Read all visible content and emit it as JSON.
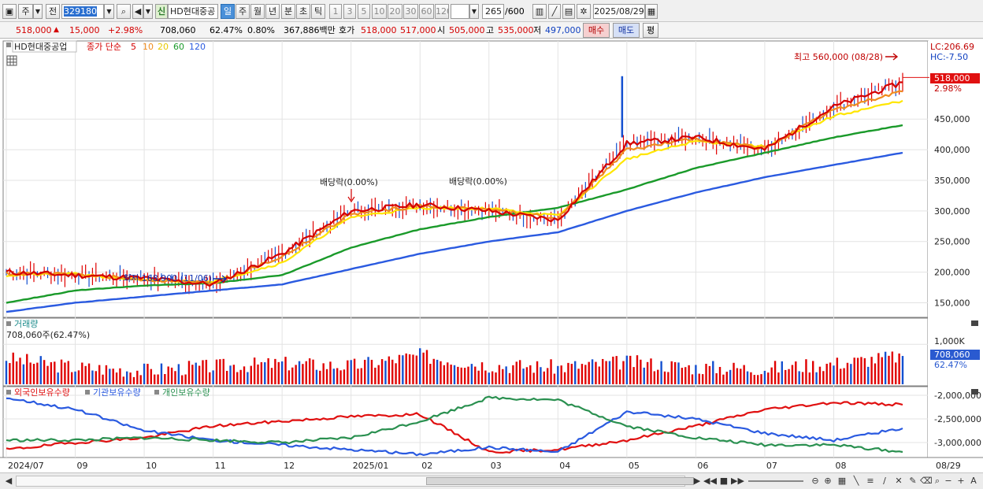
{
  "toolbar": {
    "type_label": "주",
    "prev_label": "전",
    "code": "329180",
    "name_badge": "신",
    "name": "HD현대중공",
    "period_buttons": [
      "일",
      "주",
      "월",
      "년",
      "분",
      "초",
      "틱"
    ],
    "period_selected": "일",
    "n_buttons": [
      "1",
      "3",
      "5",
      "10",
      "20",
      "30",
      "60",
      "120"
    ],
    "count_value": "265",
    "count_total": "/600",
    "date": "2025/08/29"
  },
  "quote": {
    "price": "518,000",
    "change_arrow": "▲",
    "change": "15,000",
    "change_pct": "+2.98%",
    "volume": "708,060",
    "volume_pct": "62.47%",
    "turnover_pct": "0.80%",
    "amount": "367,886백만",
    "ask_label": "호가",
    "ask": "518,000",
    "bid": "517,000",
    "open_label": "시",
    "open": "505,000",
    "high_label": "고",
    "high": "535,000",
    "low_label": "저",
    "low": "497,000",
    "buy_button": "매수",
    "sell_button": "매도",
    "avg_button": "평"
  },
  "price_panel": {
    "legend_name": "HD현대중공업",
    "legend_ma": "종가 단순",
    "lc": "LC:206.69",
    "hc": "HC:-7.50",
    "last_price": "518,000",
    "last_pct": "2.98%",
    "high_note": "최고 560,000 (08/28)",
    "low_note": "최저 168,900 (11/06)",
    "div_note_1": "배당락(0.00%)",
    "div_note_2": "배당락(0.00%)"
  },
  "volume_panel": {
    "title": "거래량",
    "info": "708,060주(62.47%)",
    "axis": "1,000K",
    "last": "708,060",
    "last_pct": "62.47%"
  },
  "holding_panel": {
    "legend": [
      "외국인보유수량",
      "기관보유수량",
      "개인보유수량"
    ],
    "axis": [
      "-2,000,000",
      "-2,500,000",
      "-3,000,000"
    ]
  },
  "x_axis": {
    "labels": [
      "2024/07",
      "09",
      "10",
      "11",
      "12",
      "2025/01",
      "02",
      "03",
      "04",
      "05",
      "06",
      "07",
      "08",
      "08/29"
    ]
  },
  "colors": {
    "up": "#e00000",
    "down": "#1450d0",
    "ma5": "#d40000",
    "ma10": "#f08c1e",
    "ma20": "#ffe600",
    "ma60": "#1a9a2a",
    "ma120": "#2a5ae0",
    "foreign": "#e01010",
    "institution": "#2a5ae0",
    "individual": "#2a9050"
  },
  "chart_data": [
    {
      "type": "line",
      "title": "HD현대중공업",
      "xlabel": "",
      "ylabel": "",
      "x": [
        "2024/07",
        "09",
        "10",
        "11",
        "12",
        "2025/01",
        "02",
        "03",
        "04",
        "05",
        "06",
        "07",
        "08",
        "08/29"
      ],
      "ylim": [
        130000,
        575000
      ],
      "yticks": [
        150000,
        200000,
        250000,
        300000,
        350000,
        400000,
        450000
      ],
      "ytick_labels": [
        "150,000",
        "200,000",
        "250,000",
        "300,000",
        "350,000",
        "400,000",
        "450,000"
      ],
      "series": [
        {
          "name": "5",
          "values": [
            200000,
            195000,
            190000,
            180000,
            230000,
            300000,
            310000,
            300000,
            285000,
            410000,
            420000,
            400000,
            470000,
            510000
          ]
        },
        {
          "name": "10",
          "values": [
            198000,
            196000,
            188000,
            182000,
            225000,
            295000,
            308000,
            302000,
            288000,
            400000,
            418000,
            402000,
            465000,
            495000
          ]
        },
        {
          "name": "20",
          "values": [
            195000,
            197000,
            186000,
            185000,
            215000,
            290000,
            305000,
            304000,
            292000,
            385000,
            414000,
            405000,
            455000,
            480000
          ]
        },
        {
          "name": "60",
          "values": [
            150000,
            170000,
            178000,
            182000,
            195000,
            240000,
            270000,
            290000,
            305000,
            335000,
            370000,
            395000,
            420000,
            440000
          ]
        },
        {
          "name": "120",
          "values": [
            135000,
            150000,
            160000,
            170000,
            180000,
            205000,
            230000,
            250000,
            265000,
            300000,
            330000,
            355000,
            375000,
            395000
          ]
        }
      ],
      "annotations": [
        {
          "text": "최고 560,000 (08/28)",
          "x": "08/29",
          "y": 560000
        },
        {
          "text": "최저 168,900 (11/06)",
          "x": "11",
          "y": 168900
        },
        {
          "text": "배당락(0.00%)",
          "x": "12",
          "y": 300000
        },
        {
          "text": "배당락(0.00%)",
          "x": "02",
          "y": 330000
        }
      ],
      "last": 518000
    },
    {
      "type": "bar",
      "title": "거래량",
      "xlabel": "",
      "ylabel": "",
      "x": [
        "2024/07",
        "09",
        "10",
        "11",
        "12",
        "2025/01",
        "02",
        "03",
        "04",
        "05",
        "06",
        "07",
        "08",
        "08/29"
      ],
      "yticks": [
        1000000
      ],
      "ytick_labels": [
        "1,000K"
      ],
      "values": [
        650000,
        420000,
        350000,
        450000,
        520000,
        460000,
        720000,
        480000,
        430000,
        560000,
        420000,
        400000,
        520000,
        708060
      ]
    },
    {
      "type": "line",
      "title": "",
      "xlabel": "",
      "ylabel": "",
      "x": [
        "2024/07",
        "09",
        "10",
        "11",
        "12",
        "2025/01",
        "02",
        "03",
        "04",
        "05",
        "06",
        "07",
        "08",
        "08/29"
      ],
      "ylim": [
        -3300000,
        -1900000
      ],
      "yticks": [
        -2000000,
        -2500000,
        -3000000
      ],
      "ytick_labels": [
        "-2,000,000",
        "-2,500,000",
        "-3,000,000"
      ],
      "series": [
        {
          "name": "외국인보유수량",
          "values": [
            -3150000,
            -3000000,
            -2900000,
            -2650000,
            -2550000,
            -2450000,
            -2400000,
            -3200000,
            -3150000,
            -2950000,
            -2650000,
            -2300000,
            -2150000,
            -2200000
          ]
        },
        {
          "name": "기관보유수량",
          "values": [
            -2050000,
            -2300000,
            -2750000,
            -2950000,
            -3050000,
            -3150000,
            -3250000,
            -3100000,
            -3200000,
            -2350000,
            -2500000,
            -2800000,
            -2950000,
            -2700000
          ]
        },
        {
          "name": "개인보유수량",
          "values": [
            -2950000,
            -2950000,
            -2900000,
            -2950000,
            -3000000,
            -2900000,
            -2550000,
            -2050000,
            -2100000,
            -2650000,
            -2900000,
            -3050000,
            -3050000,
            -3200000
          ]
        }
      ]
    }
  ]
}
